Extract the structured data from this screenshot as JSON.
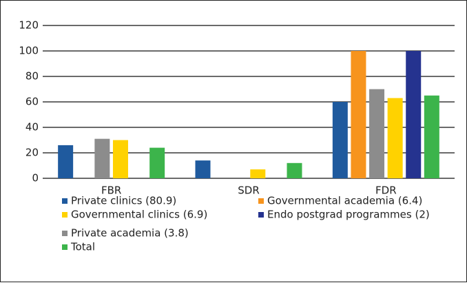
{
  "chart_data": {
    "type": "bar",
    "categories": [
      "FBR",
      "SDR",
      "FDR"
    ],
    "series": [
      {
        "name": "Private clinics (80.9)",
        "color": "#1f5a9e",
        "values": [
          26,
          14,
          60
        ]
      },
      {
        "name": "Governmental academia (6.4)",
        "color": "#f7941d",
        "values": [
          0,
          0,
          100
        ]
      },
      {
        "name": "Private academia (3.8)",
        "color": "#8c8c8c",
        "values": [
          31,
          0,
          70
        ]
      },
      {
        "name": "Governmental clinics (6.9)",
        "color": "#ffd200",
        "values": [
          30,
          7,
          63
        ]
      },
      {
        "name": "Endo postgrad programmes (2)",
        "color": "#25338f",
        "values": [
          0,
          0,
          100
        ]
      },
      {
        "name": "Total",
        "color": "#3cb44b",
        "values": [
          24,
          12,
          65
        ]
      }
    ],
    "ylim": [
      0,
      120
    ],
    "yticks": [
      0,
      20,
      40,
      60,
      80,
      100,
      120
    ],
    "grid": true
  }
}
